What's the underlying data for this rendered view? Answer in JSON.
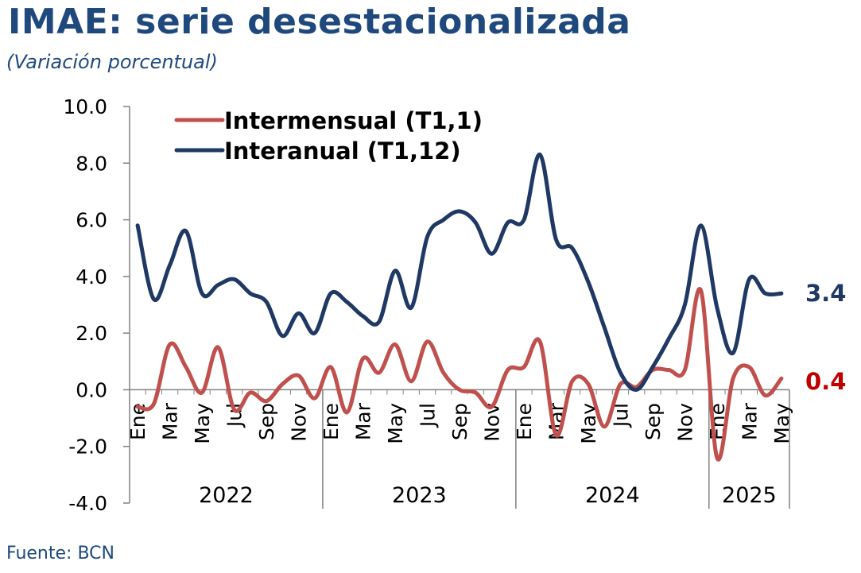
{
  "header": {
    "title": "IMAE: serie desestacionalizada",
    "subtitle": "(Variación porcentual)"
  },
  "footer": {
    "source": "Fuente: BCN"
  },
  "colors": {
    "title": "#1F497D",
    "intermensual": "#C0504D",
    "interanual": "#1F3864"
  },
  "chart_data": {
    "type": "line",
    "title": "IMAE: serie desestacionalizada",
    "ylabel": "",
    "ylim": [
      -4.0,
      10.0
    ],
    "yticks": [
      "10.0",
      "8.0",
      "6.0",
      "4.0",
      "2.0",
      "0.0",
      "-2.0",
      "-4.0"
    ],
    "month_labels": [
      "Ene",
      "Mar",
      "May",
      "Jul",
      "Sep",
      "Nov",
      "Ene",
      "Mar",
      "May",
      "Jul",
      "Sep",
      "Nov",
      "Ene",
      "Mar",
      "May",
      "Jul",
      "Sep",
      "Nov",
      "Ene",
      "Mar",
      "May"
    ],
    "month_label_index": [
      0,
      2,
      4,
      6,
      8,
      10,
      12,
      14,
      16,
      18,
      20,
      22,
      24,
      26,
      28,
      30,
      32,
      34,
      36,
      38,
      40
    ],
    "years": [
      {
        "label": "2022",
        "start": 0,
        "count": 12
      },
      {
        "label": "2023",
        "start": 12,
        "count": 12
      },
      {
        "label": "2024",
        "start": 24,
        "count": 12
      },
      {
        "label": "2025",
        "start": 36,
        "count": 5
      }
    ],
    "series": [
      {
        "name": "Intermensual (T1,1)",
        "color": "#C0504D",
        "end_label": "0.4",
        "values": [
          -0.6,
          -0.5,
          1.6,
          0.8,
          -0.1,
          1.5,
          -0.7,
          -0.1,
          -0.4,
          0.2,
          0.5,
          -0.3,
          0.8,
          -0.8,
          1.1,
          0.6,
          1.6,
          0.3,
          1.7,
          0.6,
          0.0,
          -0.1,
          -0.6,
          0.7,
          0.8,
          1.7,
          -1.6,
          0.3,
          0.2,
          -1.3,
          0.2,
          0.1,
          0.7,
          0.7,
          0.7,
          3.5,
          -2.4,
          0.4,
          0.8,
          -0.2,
          0.4
        ]
      },
      {
        "name": "Interanual (T1,12)",
        "color": "#1F3864",
        "end_label": "3.4",
        "values": [
          5.8,
          3.2,
          4.4,
          5.6,
          3.4,
          3.7,
          3.9,
          3.4,
          3.1,
          1.9,
          2.7,
          2.0,
          3.4,
          3.1,
          2.6,
          2.4,
          4.2,
          2.9,
          5.4,
          6.0,
          6.3,
          5.9,
          4.8,
          5.9,
          6.0,
          8.3,
          5.3,
          5.0,
          3.8,
          2.2,
          0.6,
          0.0,
          0.8,
          1.8,
          3.0,
          5.8,
          2.9,
          1.3,
          3.9,
          3.4,
          3.4
        ]
      }
    ],
    "legend": "top"
  }
}
